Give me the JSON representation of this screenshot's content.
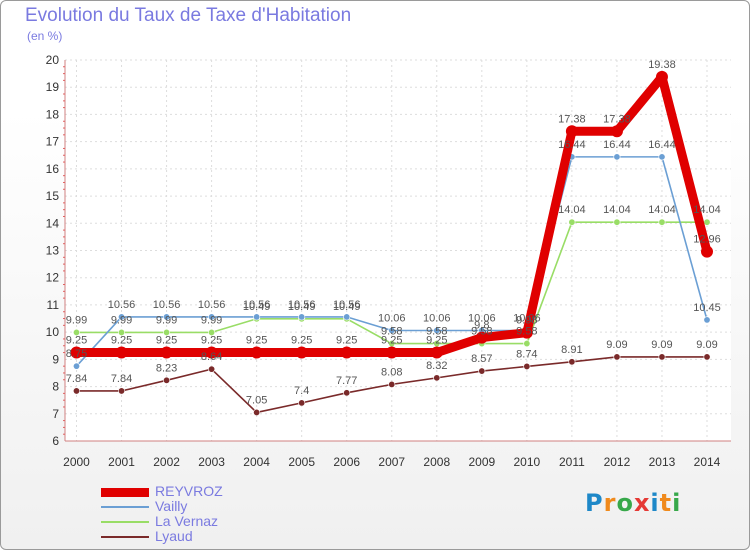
{
  "chart_data": {
    "type": "line",
    "title": "Evolution du Taux de Taxe d'Habitation",
    "ylabel": "(en %)",
    "x": [
      "2000",
      "2001",
      "2002",
      "2003",
      "2004",
      "2005",
      "2006",
      "2007",
      "2008",
      "2009",
      "2010",
      "2011",
      "2012",
      "2013",
      "2014"
    ],
    "ylim": [
      6,
      20
    ],
    "yticks": [
      "6",
      "7",
      "8",
      "9",
      "10",
      "11",
      "12",
      "13",
      "14",
      "15",
      "16",
      "17",
      "18",
      "19",
      "20"
    ],
    "grid": true,
    "legend_position": "bottom-left",
    "series": [
      {
        "name": "REYVROZ",
        "color": "#e00000",
        "values": [
          9.25,
          9.25,
          9.25,
          9.25,
          9.25,
          9.25,
          9.25,
          9.25,
          9.25,
          9.8,
          9.98,
          17.38,
          17.38,
          19.38,
          12.96
        ],
        "labels": [
          "9.25",
          "9.25",
          "9.25",
          "9.25",
          "9.25",
          "9.25",
          "9.25",
          "9.25",
          "9.25",
          "9.8",
          "9.98",
          "17.38",
          "17.38",
          "19.38",
          "12.96"
        ]
      },
      {
        "name": "Vailly",
        "color": "#6b9fd4",
        "values": [
          8.75,
          10.56,
          10.56,
          10.56,
          10.56,
          10.56,
          10.56,
          10.06,
          10.06,
          10.06,
          10.06,
          16.44,
          16.44,
          16.44,
          10.45
        ],
        "labels": [
          "8.75",
          "10.56",
          "10.56",
          "10.56",
          "10.56",
          "10.56",
          "10.56",
          "10.06",
          "10.06",
          "10.06",
          "10.06",
          "16.44",
          "16.44",
          "16.44",
          "10.45"
        ]
      },
      {
        "name": "La Vernaz",
        "color": "#99dd66",
        "values": [
          9.99,
          9.99,
          9.99,
          9.99,
          10.49,
          10.49,
          10.49,
          9.58,
          9.58,
          9.58,
          9.58,
          14.04,
          14.04,
          14.04,
          14.04
        ],
        "labels": [
          "9.99",
          "9.99",
          "9.99",
          "9.99",
          "10.49",
          "10.49",
          "10.49",
          "9.58",
          "9.58",
          "9.58",
          "9.58",
          "14.04",
          "14.04",
          "14.04",
          "14.04"
        ]
      },
      {
        "name": "Lyaud",
        "color": "#7a2a2a",
        "values": [
          7.84,
          7.84,
          8.23,
          8.64,
          7.05,
          7.4,
          7.77,
          8.08,
          8.32,
          8.57,
          8.74,
          8.91,
          9.09,
          9.09,
          9.09
        ],
        "labels": [
          "7.84",
          "7.84",
          "8.23",
          "8.64",
          "7.05",
          "7.4",
          "7.77",
          "8.08",
          "8.32",
          "8.57",
          "8.74",
          "8.91",
          "9.09",
          "9.09",
          "9.09"
        ]
      }
    ]
  },
  "logo": {
    "letters": [
      "P",
      "r",
      "o",
      "x",
      "i",
      "t",
      "i"
    ],
    "colors": [
      "#1e88c8",
      "#f08a1c",
      "#37a84a",
      "#e53935",
      "#1e88c8",
      "#f08a1c",
      "#37a84a"
    ]
  }
}
